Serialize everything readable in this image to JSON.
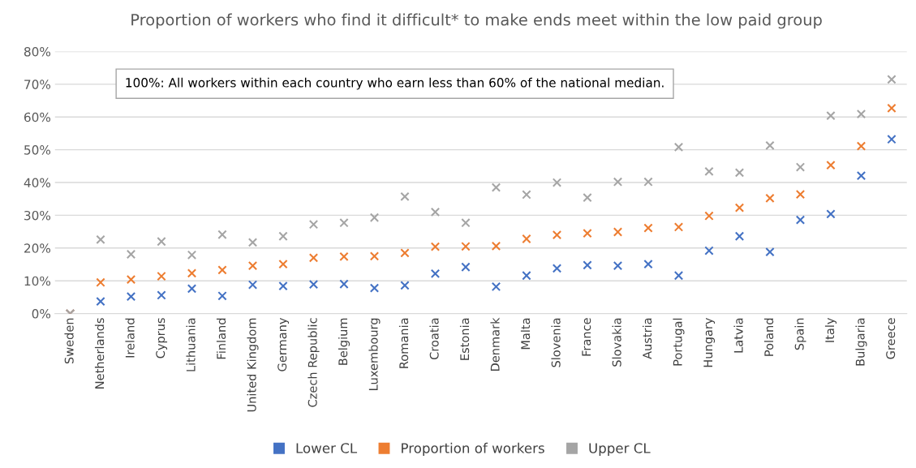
{
  "chart_data": {
    "type": "scatter",
    "title": "Proportion of workers who find it difficult* to make ends meet within the low paid group",
    "categories": [
      "Sweden",
      "Netherlands",
      "Ireland",
      "Cyprus",
      "Lithuania",
      "Finland",
      "United Kingdom",
      "Germany",
      "Czech Republic",
      "Belgium",
      "Luxembourg",
      "Romania",
      "Croatia",
      "Estonia",
      "Denmark",
      "Malta",
      "Slovenia",
      "France",
      "Slovakia",
      "Austria",
      "Portugal",
      "Hungary",
      "Latvia",
      "Poland",
      "Spain",
      "Italy",
      "Bulgaria",
      "Greece"
    ],
    "series": [
      {
        "name": "Lower CL",
        "color": "#4472c4",
        "values": [
          0,
          3.7,
          5.2,
          5.6,
          7.6,
          5.4,
          8.8,
          8.4,
          8.9,
          9,
          7.8,
          8.6,
          12.2,
          14.2,
          8.2,
          11.6,
          13.8,
          14.8,
          14.6,
          15.1,
          11.6,
          19.2,
          23.6,
          18.8,
          28.6,
          30.4,
          42.1,
          53.2
        ]
      },
      {
        "name": "Proportion of workers",
        "color": "#ed7d31",
        "values": [
          0,
          9.5,
          10.4,
          11.4,
          12.3,
          13.3,
          14.6,
          15.1,
          17,
          17.4,
          17.5,
          18.5,
          20.4,
          20.5,
          20.6,
          22.8,
          24,
          24.5,
          24.9,
          26.1,
          26.4,
          29.8,
          32.3,
          35.2,
          36.4,
          45.3,
          51.1,
          62.7
        ]
      },
      {
        "name": "Upper CL",
        "color": "#a5a5a5",
        "values": [
          0,
          22.6,
          18.1,
          22,
          17.9,
          24.1,
          21.7,
          23.6,
          27.2,
          27.7,
          29.3,
          35.7,
          31,
          27.7,
          38.5,
          36.3,
          40,
          35.4,
          40.2,
          40.2,
          50.8,
          43.4,
          43,
          51.3,
          44.7,
          60.4,
          60.9,
          71.5
        ]
      }
    ],
    "ylim": [
      0,
      80
    ],
    "yticks": [
      {
        "value": 0,
        "label": "0%"
      },
      {
        "value": 10,
        "label": "10%"
      },
      {
        "value": 20,
        "label": "20%"
      },
      {
        "value": 30,
        "label": "30%"
      },
      {
        "value": 40,
        "label": "40%"
      },
      {
        "value": 50,
        "label": "50%"
      },
      {
        "value": 60,
        "label": "60%"
      },
      {
        "value": 70,
        "label": "70%"
      },
      {
        "value": 80,
        "label": "80%"
      }
    ],
    "grid": "y",
    "legend": "bottom",
    "marker": "cross",
    "annotations": [
      "100%: All workers within each country who earn less than 60% of the national median."
    ]
  }
}
